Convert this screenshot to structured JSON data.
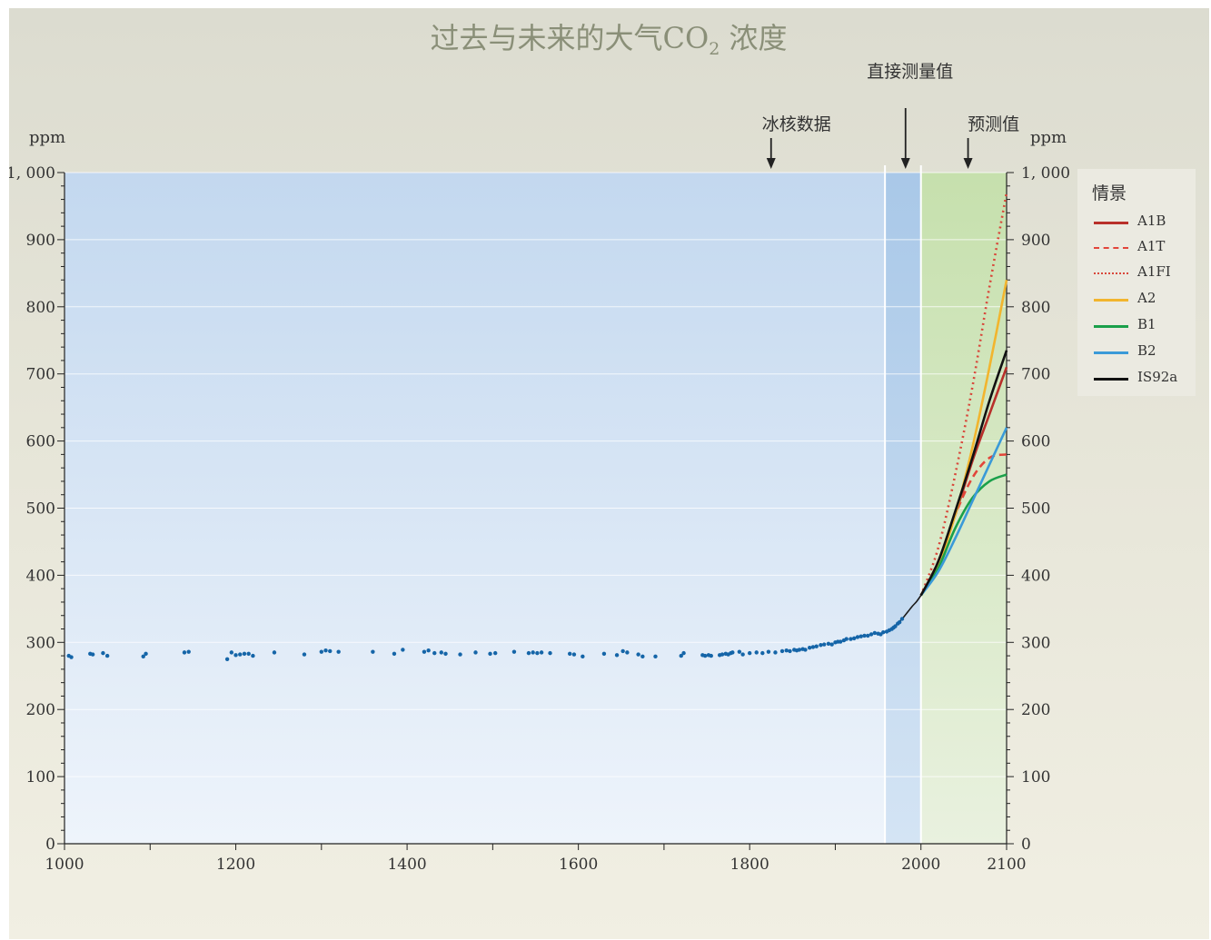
{
  "chart_data": {
    "type": "scatter",
    "title": "过去与未来的大气CO",
    "title_subscript": "2",
    "title_suffix": " 浓度",
    "ylabel_left": "ppm",
    "ylabel_right": "ppm",
    "xlim": [
      1000,
      2100
    ],
    "ylim": [
      0,
      1000
    ],
    "x_ticks": [
      1000,
      1200,
      1400,
      1600,
      1800,
      2000,
      2100
    ],
    "y_ticks": [
      0,
      100,
      200,
      300,
      400,
      500,
      600,
      700,
      800,
      900,
      1000
    ],
    "y_tick_labels": [
      "0",
      "100",
      "200",
      "300",
      "400",
      "500",
      "600",
      "700",
      "800",
      "900",
      "1, 000"
    ],
    "grid": true,
    "regions": [
      {
        "label": "冰核数据",
        "from": 1000,
        "to": 1958,
        "color": "#c9dcf0",
        "arrow_x": 1825
      },
      {
        "label": "直接测量值",
        "from": 1958,
        "to": 2000,
        "color": "#b0cde9",
        "arrow_x": 1982
      },
      {
        "label": "预测值",
        "from": 2000,
        "to": 2100,
        "color": "#cfe3bf",
        "arrow_x": 2055
      }
    ],
    "ice_core": {
      "x": [
        1005,
        1008,
        1030,
        1033,
        1045,
        1050,
        1092,
        1095,
        1140,
        1145,
        1190,
        1195,
        1200,
        1205,
        1210,
        1215,
        1220,
        1245,
        1280,
        1300,
        1305,
        1310,
        1320,
        1360,
        1385,
        1395,
        1420,
        1425,
        1432,
        1440,
        1445,
        1462,
        1480,
        1497,
        1503,
        1525,
        1542,
        1547,
        1552,
        1557,
        1567,
        1590,
        1595,
        1605,
        1630,
        1645,
        1652,
        1657,
        1670,
        1675,
        1690,
        1720,
        1723,
        1745,
        1748,
        1752,
        1755,
        1765,
        1768,
        1772,
        1775,
        1778,
        1780,
        1788,
        1792,
        1800,
        1808,
        1815,
        1822,
        1830,
        1838,
        1843,
        1847,
        1852,
        1855,
        1858,
        1862,
        1865,
        1870,
        1874,
        1878,
        1883,
        1887,
        1892,
        1896,
        1900,
        1903,
        1906,
        1910,
        1913,
        1918,
        1922,
        1926,
        1930,
        1934,
        1938,
        1942,
        1946,
        1950,
        1953,
        1956,
        1960,
        1963,
        1966,
        1968,
        1970,
        1973,
        1975,
        1978
      ],
      "y": [
        280,
        278,
        283,
        282,
        284,
        280,
        279,
        283,
        285,
        286,
        275,
        285,
        281,
        282,
        283,
        283,
        280,
        285,
        282,
        286,
        288,
        287,
        286,
        286,
        283,
        289,
        286,
        288,
        284,
        285,
        283,
        282,
        285,
        283,
        284,
        286,
        284,
        285,
        284,
        285,
        284,
        283,
        282,
        279,
        283,
        281,
        287,
        285,
        282,
        279,
        279,
        280,
        284,
        281,
        280,
        281,
        280,
        281,
        282,
        283,
        282,
        284,
        285,
        286,
        282,
        284,
        285,
        284,
        286,
        285,
        287,
        288,
        287,
        289,
        288,
        289,
        290,
        289,
        292,
        293,
        294,
        296,
        297,
        298,
        297,
        300,
        301,
        301,
        303,
        305,
        305,
        306,
        308,
        309,
        310,
        310,
        312,
        314,
        313,
        312,
        315,
        316,
        318,
        320,
        322,
        324,
        328,
        330,
        335
      ]
    },
    "measured": {
      "x": [
        1958,
        1965,
        1970,
        1975,
        1980,
        1985,
        1990,
        1995,
        2000
      ],
      "y": [
        315,
        320,
        325,
        331,
        338,
        346,
        354,
        361,
        370
      ]
    },
    "legend_title": "情景",
    "series": [
      {
        "name": "A1B",
        "color": "#b8302a",
        "style": "solid",
        "x": [
          2000,
          2020,
          2040,
          2060,
          2080,
          2100
        ],
        "y": [
          370,
          415,
          490,
          570,
          640,
          710
        ]
      },
      {
        "name": "A1T",
        "color": "#e2453a",
        "style": "dashed",
        "x": [
          2000,
          2020,
          2040,
          2060,
          2080,
          2100
        ],
        "y": [
          370,
          420,
          490,
          545,
          575,
          580
        ]
      },
      {
        "name": "A1FI",
        "color": "#d8473a",
        "style": "dotted",
        "x": [
          2000,
          2020,
          2040,
          2060,
          2080,
          2100
        ],
        "y": [
          370,
          440,
          550,
          680,
          830,
          970
        ]
      },
      {
        "name": "A2",
        "color": "#f2b52e",
        "style": "solid",
        "x": [
          2000,
          2020,
          2040,
          2060,
          2080,
          2100
        ],
        "y": [
          370,
          415,
          490,
          590,
          710,
          840
        ]
      },
      {
        "name": "B1",
        "color": "#1aa04a",
        "style": "solid",
        "x": [
          2000,
          2020,
          2040,
          2060,
          2080,
          2100
        ],
        "y": [
          370,
          410,
          470,
          515,
          540,
          550
        ]
      },
      {
        "name": "B2",
        "color": "#3a9ad8",
        "style": "solid",
        "x": [
          2000,
          2020,
          2040,
          2060,
          2080,
          2100
        ],
        "y": [
          370,
          405,
          455,
          510,
          565,
          620
        ]
      },
      {
        "name": "IS92a",
        "color": "#111111",
        "style": "solid",
        "x": [
          2000,
          2020,
          2040,
          2060,
          2080,
          2100
        ],
        "y": [
          370,
          420,
          495,
          575,
          660,
          735
        ]
      }
    ]
  }
}
